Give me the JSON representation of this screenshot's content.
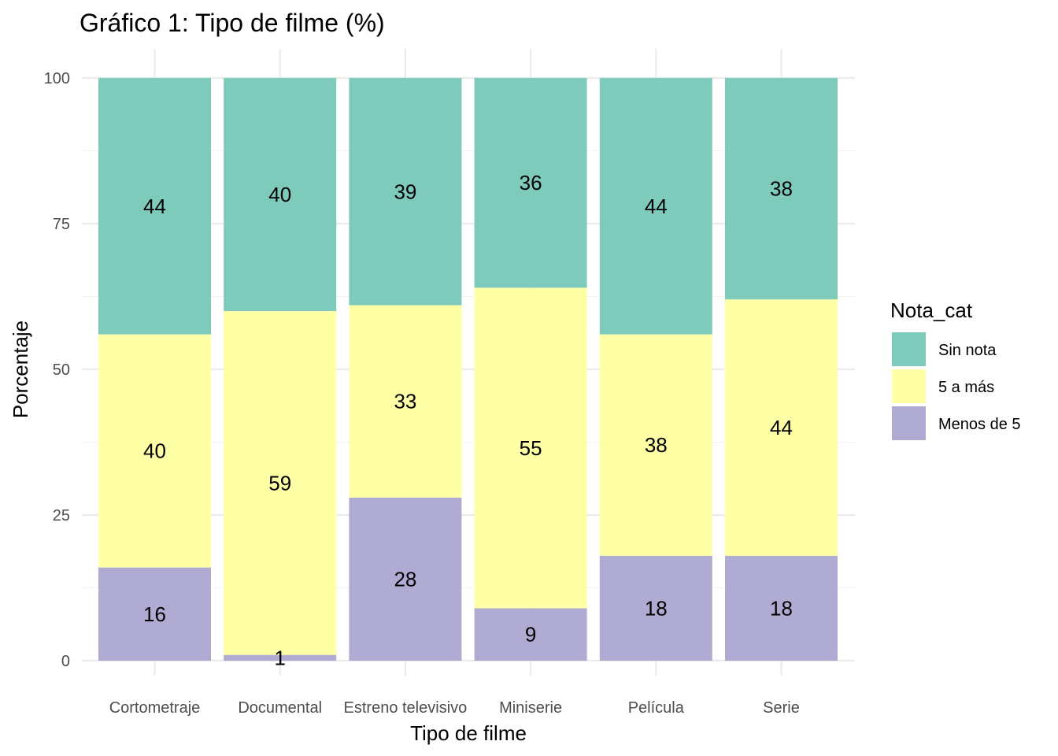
{
  "chart_data": {
    "type": "bar",
    "stacked": true,
    "title": "Gráfico 1: Tipo de filme (%)",
    "xlabel": "Tipo de filme",
    "ylabel": "Porcentaje",
    "ylim": [
      0,
      100
    ],
    "yticks": [
      "0",
      "25",
      "50",
      "75",
      "100"
    ],
    "grid": true,
    "legend": {
      "title": "Nota_cat",
      "position": "right"
    },
    "categories": [
      "Cortometraje",
      "Documental",
      "Estreno televisivo",
      "Miniserie",
      "Película",
      "Serie"
    ],
    "series": [
      {
        "name": "Menos de 5",
        "color": "#b0abd2",
        "values": [
          16,
          1,
          28,
          9,
          18,
          18
        ],
        "labels": [
          "16",
          "1",
          "28",
          "9",
          "18",
          "18"
        ]
      },
      {
        "name": "5 a más",
        "color": "#ffffa5",
        "values": [
          40,
          59,
          33,
          55,
          38,
          44
        ],
        "labels": [
          "40",
          "59",
          "33",
          "55",
          "38",
          "44"
        ]
      },
      {
        "name": "Sin nota",
        "color": "#7ecabb",
        "values": [
          44,
          40,
          39,
          36,
          44,
          38
        ],
        "labels": [
          "44",
          "40",
          "39",
          "36",
          "44",
          "38"
        ]
      }
    ],
    "legend_order": [
      "Sin nota",
      "5 a más",
      "Menos de 5"
    ]
  }
}
